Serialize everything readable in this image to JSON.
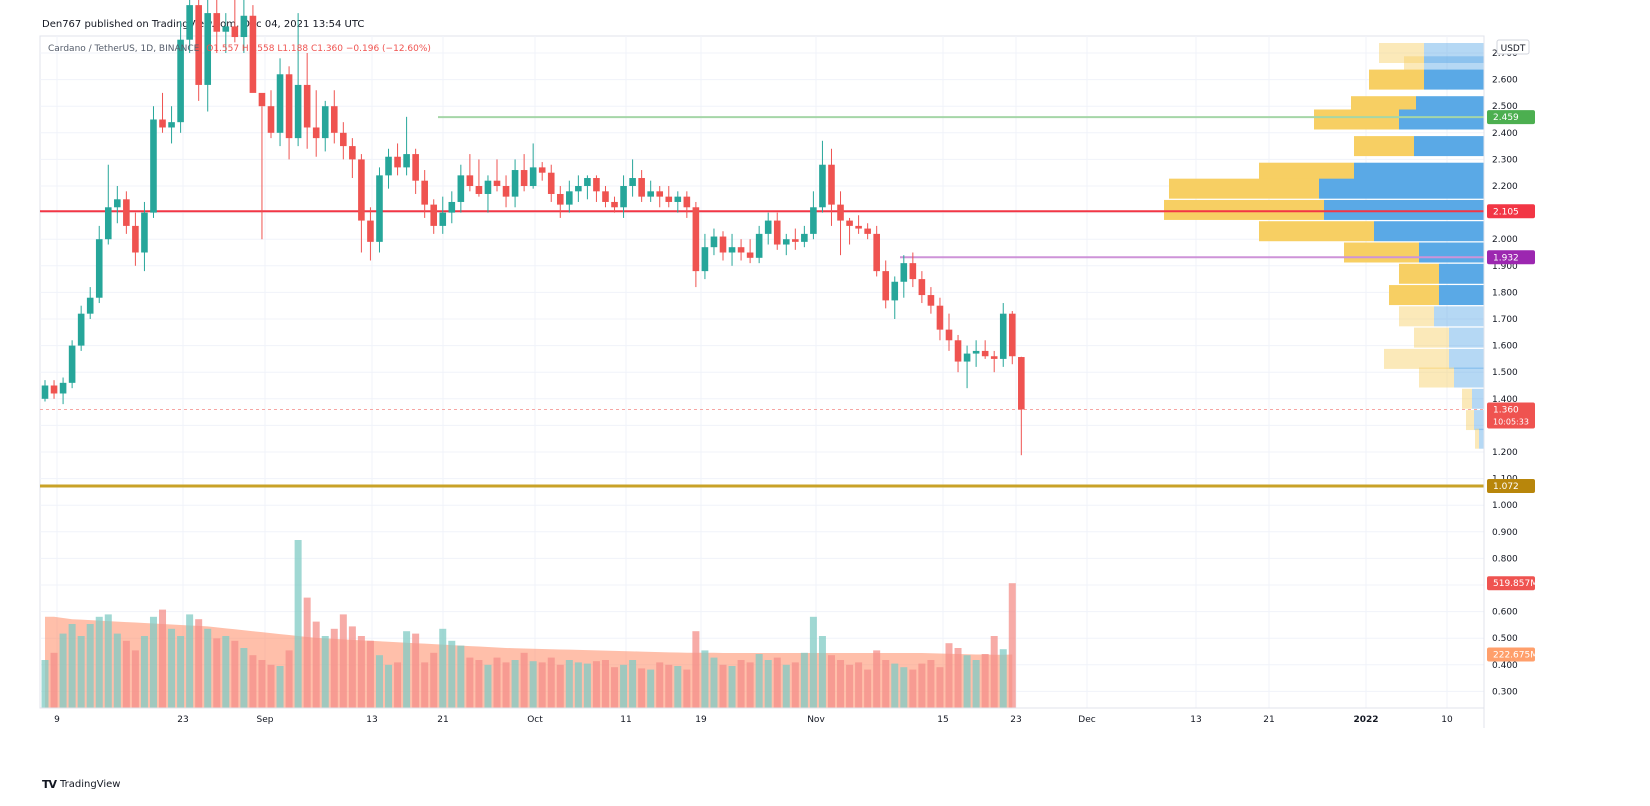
{
  "header": {
    "published_by": "Den767 published on TradingView.com, Dec 04, 2021 13:54 UTC",
    "symbol": "Cardano / TetherUS, 1D, BINANCE",
    "ohlc_values": "O1.557 H1.558 L1.188 C1.360 −0.196 (−12.60%)"
  },
  "footer": {
    "brand_logo": "TV",
    "brand_name": "TradingView"
  },
  "colors": {
    "up": "#26a69a",
    "down": "#ef5350",
    "grid": "#f0f3fa",
    "support_line": "#c9a227",
    "resistance_mid": "#f23645",
    "top_line": "#8bd08b",
    "purple_line": "#c879e6",
    "vp_up": "#5aa9e6",
    "vp_down": "#f7cf63"
  },
  "chart_data": {
    "type": "candlestick",
    "currency_label": "USDT",
    "y_ticks": [
      "2.700",
      "2.600",
      "2.500",
      "2.400",
      "2.300",
      "2.200",
      "2.100",
      "2.000",
      "1.900",
      "1.800",
      "1.700",
      "1.600",
      "1.500",
      "1.400",
      "1.300",
      "1.200",
      "1.100",
      "1.000",
      "0.900",
      "0.800",
      "0.700",
      "0.600",
      "0.500",
      "0.400",
      "0.300"
    ],
    "x_ticks": [
      "9",
      "23",
      "Sep",
      "13",
      "21",
      "Oct",
      "11",
      "19",
      "Nov",
      "15",
      "23",
      "Dec",
      "13",
      "21",
      "2022",
      "10"
    ],
    "horizontal_levels": [
      {
        "value": 2.459,
        "label": "2.459",
        "color": "#4caf50",
        "line_color": "#a5d6a7"
      },
      {
        "value": 2.105,
        "label": "2.105",
        "color": "#f23645",
        "line_color": "#f23645"
      },
      {
        "value": 1.932,
        "label": "1.932",
        "color": "#9c27b0",
        "line_color": "#ce93d8"
      },
      {
        "value": 1.072,
        "label": "1.072",
        "color": "#b8860b",
        "line_color": "#c9a227"
      }
    ],
    "last_price": {
      "value": 1.36,
      "label": "1.360",
      "countdown": "10:05:33"
    },
    "volume_labels": {
      "last": "519.857M",
      "ma": "222.675M"
    },
    "candles_ohlc": [
      [
        1.4,
        1.47,
        1.39,
        1.45
      ],
      [
        1.45,
        1.47,
        1.4,
        1.42
      ],
      [
        1.42,
        1.48,
        1.38,
        1.46
      ],
      [
        1.46,
        1.62,
        1.44,
        1.6
      ],
      [
        1.6,
        1.75,
        1.58,
        1.72
      ],
      [
        1.72,
        1.82,
        1.7,
        1.78
      ],
      [
        1.78,
        2.05,
        1.76,
        2.0
      ],
      [
        2.0,
        2.28,
        1.98,
        2.12
      ],
      [
        2.12,
        2.2,
        2.06,
        2.15
      ],
      [
        2.15,
        2.18,
        2.02,
        2.05
      ],
      [
        2.05,
        2.1,
        1.9,
        1.95
      ],
      [
        1.95,
        2.14,
        1.88,
        2.1
      ],
      [
        2.1,
        2.5,
        2.08,
        2.45
      ],
      [
        2.45,
        2.55,
        2.4,
        2.42
      ],
      [
        2.42,
        2.5,
        2.36,
        2.44
      ],
      [
        2.44,
        2.82,
        2.4,
        2.75
      ],
      [
        2.75,
        2.95,
        2.7,
        2.88
      ],
      [
        2.88,
        2.94,
        2.52,
        2.58
      ],
      [
        2.58,
        2.92,
        2.48,
        2.85
      ],
      [
        2.85,
        2.97,
        2.7,
        2.78
      ],
      [
        2.78,
        2.85,
        2.7,
        2.8
      ],
      [
        2.8,
        2.9,
        2.74,
        2.76
      ],
      [
        2.76,
        2.92,
        2.7,
        2.84
      ],
      [
        2.84,
        2.88,
        2.6,
        2.55
      ],
      [
        2.55,
        2.5,
        2.0,
        2.5
      ],
      [
        2.5,
        2.56,
        2.38,
        2.4
      ],
      [
        2.4,
        2.68,
        2.35,
        2.62
      ],
      [
        2.62,
        2.65,
        2.3,
        2.38
      ],
      [
        2.38,
        2.85,
        2.35,
        2.58
      ],
      [
        2.58,
        2.7,
        2.34,
        2.42
      ],
      [
        2.42,
        2.56,
        2.31,
        2.38
      ],
      [
        2.38,
        2.52,
        2.33,
        2.5
      ],
      [
        2.5,
        2.56,
        2.36,
        2.4
      ],
      [
        2.4,
        2.44,
        2.3,
        2.35
      ],
      [
        2.35,
        2.38,
        2.23,
        2.3
      ],
      [
        2.3,
        2.32,
        1.95,
        2.07
      ],
      [
        2.07,
        2.12,
        1.92,
        1.99
      ],
      [
        1.99,
        2.27,
        1.95,
        2.24
      ],
      [
        2.24,
        2.34,
        2.19,
        2.31
      ],
      [
        2.31,
        2.36,
        2.24,
        2.27
      ],
      [
        2.27,
        2.46,
        2.24,
        2.32
      ],
      [
        2.32,
        2.34,
        2.17,
        2.22
      ],
      [
        2.22,
        2.26,
        2.08,
        2.13
      ],
      [
        2.13,
        2.15,
        2.02,
        2.05
      ],
      [
        2.05,
        2.16,
        2.02,
        2.1
      ],
      [
        2.1,
        2.18,
        2.06,
        2.14
      ],
      [
        2.14,
        2.28,
        2.1,
        2.24
      ],
      [
        2.24,
        2.32,
        2.18,
        2.2
      ],
      [
        2.2,
        2.3,
        2.16,
        2.17
      ],
      [
        2.17,
        2.24,
        2.1,
        2.22
      ],
      [
        2.22,
        2.3,
        2.18,
        2.2
      ],
      [
        2.2,
        2.24,
        2.12,
        2.16
      ],
      [
        2.16,
        2.3,
        2.12,
        2.26
      ],
      [
        2.26,
        2.32,
        2.18,
        2.2
      ],
      [
        2.2,
        2.36,
        2.19,
        2.27
      ],
      [
        2.27,
        2.29,
        2.22,
        2.25
      ],
      [
        2.25,
        2.28,
        2.14,
        2.17
      ],
      [
        2.17,
        2.2,
        2.08,
        2.13
      ],
      [
        2.13,
        2.22,
        2.1,
        2.18
      ],
      [
        2.18,
        2.24,
        2.14,
        2.2
      ],
      [
        2.2,
        2.24,
        2.15,
        2.23
      ],
      [
        2.23,
        2.24,
        2.14,
        2.18
      ],
      [
        2.18,
        2.2,
        2.12,
        2.14
      ],
      [
        2.14,
        2.16,
        2.1,
        2.12
      ],
      [
        2.12,
        2.24,
        2.08,
        2.2
      ],
      [
        2.2,
        2.3,
        2.16,
        2.23
      ],
      [
        2.23,
        2.26,
        2.14,
        2.16
      ],
      [
        2.16,
        2.22,
        2.14,
        2.18
      ],
      [
        2.18,
        2.2,
        2.12,
        2.16
      ],
      [
        2.16,
        2.2,
        2.12,
        2.14
      ],
      [
        2.14,
        2.18,
        2.1,
        2.16
      ],
      [
        2.16,
        2.18,
        2.08,
        2.12
      ],
      [
        2.12,
        2.14,
        1.82,
        1.88
      ],
      [
        1.88,
        2.02,
        1.85,
        1.97
      ],
      [
        1.97,
        2.04,
        1.94,
        2.01
      ],
      [
        2.01,
        2.03,
        1.92,
        1.95
      ],
      [
        1.95,
        2.02,
        1.9,
        1.97
      ],
      [
        1.97,
        2.0,
        1.92,
        1.95
      ],
      [
        1.95,
        2.0,
        1.91,
        1.93
      ],
      [
        1.93,
        2.05,
        1.91,
        2.02
      ],
      [
        2.02,
        2.1,
        1.98,
        2.07
      ],
      [
        2.07,
        2.1,
        1.96,
        1.98
      ],
      [
        1.98,
        2.02,
        1.94,
        2.0
      ],
      [
        2.0,
        2.04,
        1.96,
        1.99
      ],
      [
        1.99,
        2.05,
        1.97,
        2.02
      ],
      [
        2.02,
        2.18,
        2.0,
        2.12
      ],
      [
        2.12,
        2.37,
        2.1,
        2.28
      ],
      [
        2.28,
        2.34,
        2.05,
        2.13
      ],
      [
        2.13,
        2.18,
        1.94,
        2.07
      ],
      [
        2.07,
        2.08,
        1.98,
        2.05
      ],
      [
        2.05,
        2.09,
        2.02,
        2.04
      ],
      [
        2.04,
        2.06,
        2.0,
        2.02
      ],
      [
        2.02,
        2.05,
        1.86,
        1.88
      ],
      [
        1.88,
        1.92,
        1.74,
        1.77
      ],
      [
        1.77,
        1.86,
        1.7,
        1.84
      ],
      [
        1.84,
        1.94,
        1.78,
        1.91
      ],
      [
        1.91,
        1.95,
        1.82,
        1.85
      ],
      [
        1.85,
        1.88,
        1.76,
        1.79
      ],
      [
        1.79,
        1.82,
        1.72,
        1.75
      ],
      [
        1.75,
        1.78,
        1.62,
        1.66
      ],
      [
        1.66,
        1.72,
        1.58,
        1.62
      ],
      [
        1.62,
        1.64,
        1.5,
        1.54
      ],
      [
        1.54,
        1.6,
        1.44,
        1.57
      ],
      [
        1.57,
        1.62,
        1.52,
        1.58
      ],
      [
        1.58,
        1.62,
        1.55,
        1.56
      ],
      [
        1.56,
        1.58,
        1.5,
        1.55
      ],
      [
        1.55,
        1.76,
        1.52,
        1.72
      ],
      [
        1.72,
        1.73,
        1.53,
        1.56
      ],
      [
        1.557,
        1.558,
        1.188,
        1.36
      ]
    ],
    "volume_m": [
      200,
      230,
      310,
      350,
      300,
      350,
      380,
      390,
      310,
      280,
      240,
      300,
      380,
      410,
      330,
      300,
      390,
      370,
      330,
      290,
      300,
      280,
      250,
      220,
      200,
      180,
      175,
      240,
      700,
      460,
      360,
      300,
      330,
      390,
      340,
      300,
      280,
      220,
      180,
      190,
      320,
      310,
      190,
      230,
      330,
      280,
      260,
      210,
      200,
      180,
      210,
      190,
      200,
      230,
      195,
      190,
      210,
      180,
      200,
      190,
      185,
      195,
      200,
      170,
      180,
      200,
      165,
      160,
      190,
      180,
      175,
      160,
      320,
      240,
      210,
      180,
      175,
      200,
      190,
      225,
      200,
      210,
      180,
      190,
      230,
      380,
      300,
      220,
      200,
      180,
      190,
      160,
      240,
      200,
      185,
      170,
      160,
      185,
      200,
      170,
      270,
      250,
      220,
      200,
      225,
      300,
      245,
      520
    ],
    "volume_ma_m": [
      380,
      380,
      375,
      370,
      368,
      366,
      364,
      362,
      360,
      358,
      356,
      354,
      352,
      350,
      348,
      346,
      344,
      342,
      340,
      336,
      332,
      328,
      324,
      320,
      316,
      312,
      308,
      304,
      300,
      296,
      292,
      290,
      288,
      286,
      284,
      282,
      280,
      278,
      276,
      274,
      272,
      270,
      268,
      266,
      264,
      262,
      260,
      258,
      256,
      254,
      252,
      250,
      249,
      248,
      247,
      246,
      245,
      244,
      243,
      242,
      241,
      240,
      239,
      238,
      237,
      236,
      235,
      234,
      233,
      232,
      231,
      230,
      230,
      230,
      230,
      229,
      229,
      229,
      229,
      229,
      229,
      229,
      229,
      229,
      229,
      229,
      229,
      229,
      229,
      229,
      229,
      229,
      229,
      229,
      229,
      229,
      229,
      229,
      228,
      227,
      226,
      225,
      224,
      223,
      223,
      222,
      222,
      222.675
    ],
    "volume_profile": [
      {
        "price": 2.7,
        "up": 60,
        "down": 45,
        "faded": true
      },
      {
        "price": 2.65,
        "up": 60,
        "down": 20,
        "faded": true
      },
      {
        "price": 2.6,
        "up": 60,
        "down": 55,
        "faded": false
      },
      {
        "price": 2.5,
        "up": 68,
        "down": 65,
        "faded": false
      },
      {
        "price": 2.45,
        "up": 85,
        "down": 85,
        "faded": false
      },
      {
        "price": 2.35,
        "up": 70,
        "down": 60,
        "faded": false
      },
      {
        "price": 2.25,
        "up": 130,
        "down": 95,
        "faded": false
      },
      {
        "price": 2.19,
        "up": 165,
        "down": 150,
        "faded": false
      },
      {
        "price": 2.11,
        "up": 160,
        "down": 160,
        "faded": false
      },
      {
        "price": 2.03,
        "up": 110,
        "down": 115,
        "faded": false
      },
      {
        "price": 1.95,
        "up": 65,
        "down": 75,
        "faded": false
      },
      {
        "price": 1.87,
        "up": 45,
        "down": 40,
        "faded": false
      },
      {
        "price": 1.79,
        "up": 45,
        "down": 50,
        "faded": false
      },
      {
        "price": 1.71,
        "up": 50,
        "down": 35,
        "faded": true
      },
      {
        "price": 1.63,
        "up": 35,
        "down": 35,
        "faded": true
      },
      {
        "price": 1.55,
        "up": 35,
        "down": 65,
        "faded": true
      },
      {
        "price": 1.48,
        "up": 30,
        "down": 35,
        "faded": true
      },
      {
        "price": 1.4,
        "up": 12,
        "down": 10,
        "faded": true
      },
      {
        "price": 1.32,
        "up": 10,
        "down": 8,
        "faded": true
      },
      {
        "price": 1.25,
        "up": 5,
        "down": 4,
        "faded": true
      }
    ]
  }
}
